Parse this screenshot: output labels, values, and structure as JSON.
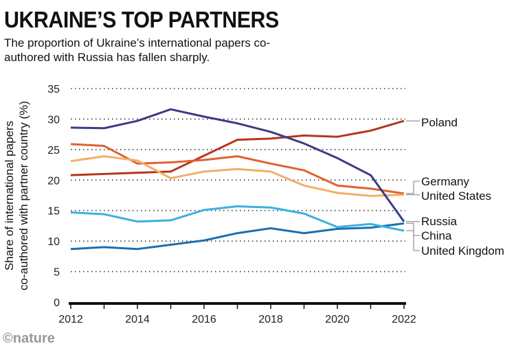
{
  "title": "UKRAINE’S TOP PARTNERS",
  "subtitle": "The proportion of Ukraine’s international papers co-authored with Russia has fallen sharply.",
  "logo": "©nature",
  "chart_data": {
    "type": "line",
    "title": "UKRAINE’S TOP PARTNERS",
    "xlabel": "",
    "ylabel_lines": [
      "Share of international papers",
      "co-authored with partner country (%)"
    ],
    "x": [
      2012,
      2013,
      2014,
      2015,
      2016,
      2017,
      2018,
      2019,
      2020,
      2021,
      2022
    ],
    "xticks": [
      "2012",
      "2014",
      "2016",
      "2018",
      "2020",
      "2022"
    ],
    "yticks": [
      "0",
      "5",
      "10",
      "15",
      "20",
      "25",
      "30",
      "35"
    ],
    "ylim": [
      0,
      35
    ],
    "grid": true,
    "legend": "right-end labels",
    "series": [
      {
        "name": "Poland",
        "color": "#b5361c",
        "values": [
          20.8,
          21.0,
          21.2,
          21.4,
          24.0,
          26.6,
          26.8,
          27.3,
          27.1,
          28.1,
          29.7
        ]
      },
      {
        "name": "Germany",
        "color": "#e0622e",
        "values": [
          25.9,
          25.6,
          22.7,
          22.9,
          23.3,
          23.9,
          22.7,
          21.6,
          19.1,
          18.6,
          17.8
        ]
      },
      {
        "name": "United States",
        "color": "#f2ae66",
        "values": [
          23.1,
          23.9,
          23.2,
          20.3,
          21.4,
          21.8,
          21.4,
          19.1,
          17.9,
          17.4,
          17.6
        ]
      },
      {
        "name": "Russia",
        "color": "#3b3b86",
        "values": [
          28.6,
          28.5,
          29.7,
          31.6,
          30.4,
          29.3,
          27.9,
          26.0,
          23.6,
          20.8,
          13.2
        ]
      },
      {
        "name": "China",
        "color": "#1a6fb0",
        "values": [
          8.7,
          9.0,
          8.7,
          9.4,
          10.1,
          11.3,
          12.1,
          11.3,
          12.0,
          12.2,
          12.9
        ]
      },
      {
        "name": "United Kingdom",
        "color": "#3bb0e0",
        "values": [
          14.7,
          14.4,
          13.2,
          13.4,
          15.1,
          15.7,
          15.5,
          14.5,
          12.3,
          12.8,
          11.7
        ]
      }
    ]
  }
}
